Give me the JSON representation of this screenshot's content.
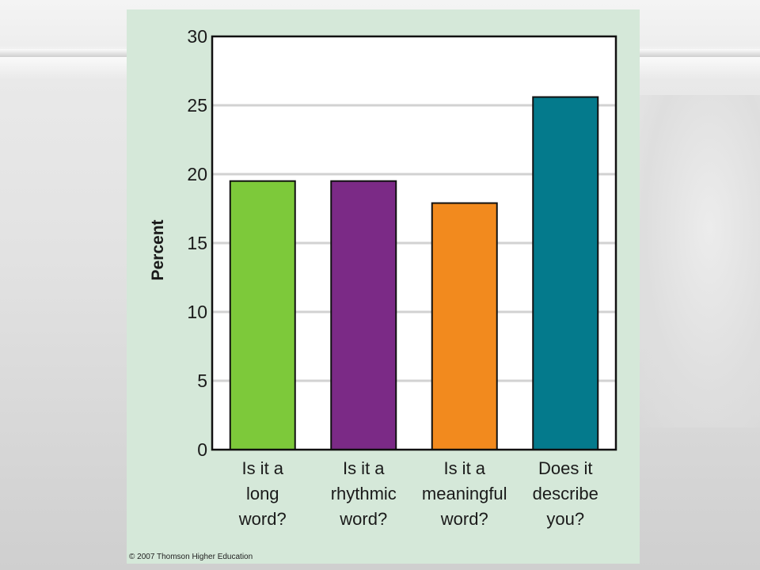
{
  "chart_data": {
    "type": "bar",
    "categories": [
      [
        "Is it a",
        "long",
        "word?"
      ],
      [
        "Is it a",
        "rhythmic",
        "word?"
      ],
      [
        "Is it a",
        "meaningful",
        "word?"
      ],
      [
        "Does it",
        "describe",
        "you?"
      ]
    ],
    "values": [
      19.5,
      19.5,
      17.9,
      25.6
    ],
    "colors": [
      "#7dc93a",
      "#7b2a86",
      "#f28a1e",
      "#047a8c"
    ],
    "ylabel": "Percent",
    "xlabel": "",
    "ylim": [
      0,
      30
    ],
    "yticks": [
      0,
      5,
      10,
      15,
      20,
      25,
      30
    ],
    "grid": true,
    "plot_background": "#ffffff",
    "panel_background": "#d5e8d9",
    "gridline_color": "#d2d2d2"
  },
  "footer": {
    "copyright": "© 2007 Thomson Higher Education"
  }
}
